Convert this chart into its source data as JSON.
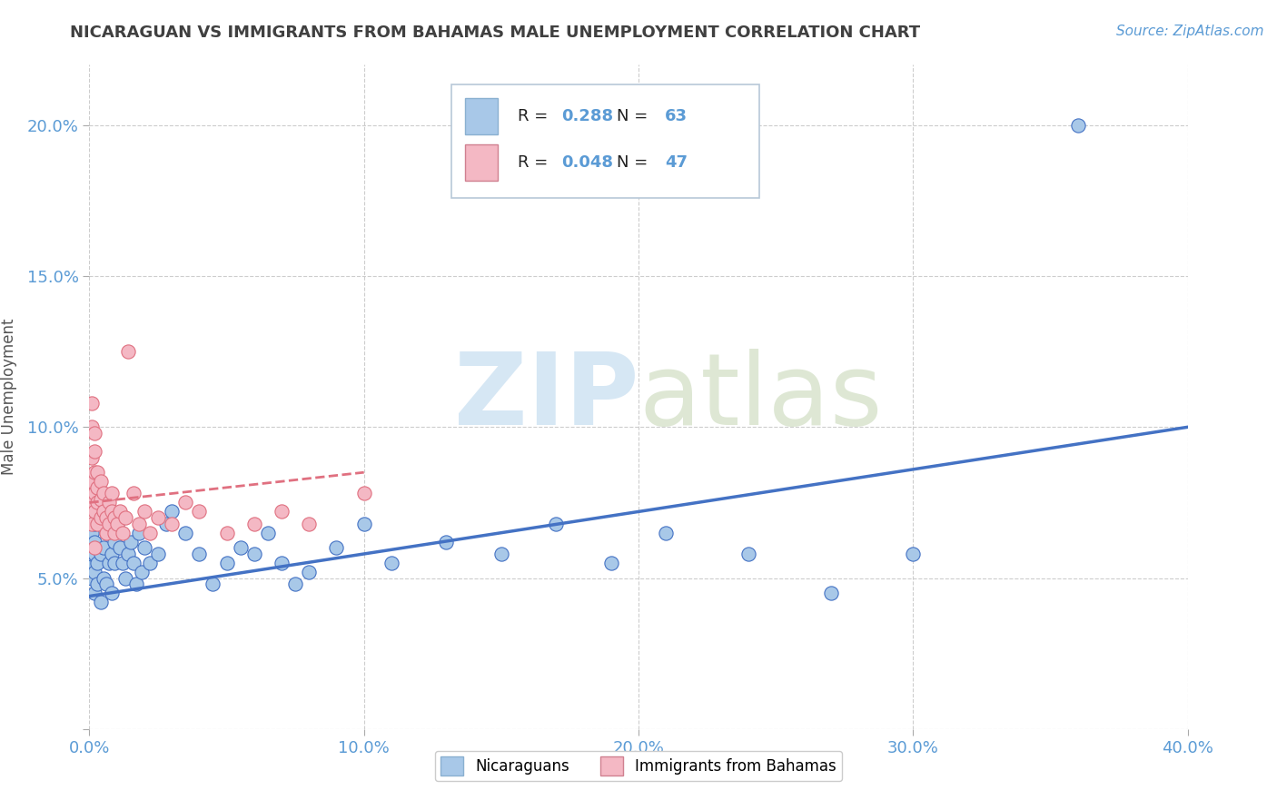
{
  "title": "NICARAGUAN VS IMMIGRANTS FROM BAHAMAS MALE UNEMPLOYMENT CORRELATION CHART",
  "source": "Source: ZipAtlas.com",
  "ylabel": "Male Unemployment",
  "xlim": [
    0.0,
    0.4
  ],
  "ylim": [
    0.0,
    0.22
  ],
  "xticks": [
    0.0,
    0.1,
    0.2,
    0.3,
    0.4
  ],
  "xticklabels": [
    "0.0%",
    "10.0%",
    "20.0%",
    "30.0%",
    "40.0%"
  ],
  "yticks": [
    0.0,
    0.05,
    0.1,
    0.15,
    0.2
  ],
  "yticklabels": [
    "",
    "5.0%",
    "10.0%",
    "15.0%",
    "20.0%"
  ],
  "series1_color": "#a8c8e8",
  "series2_color": "#f4b8c4",
  "line1_color": "#4472c4",
  "line2_color": "#e07080",
  "R1": 0.288,
  "N1": 63,
  "R2": 0.048,
  "N2": 47,
  "background_color": "#ffffff",
  "grid_color": "#c8c8c8",
  "tick_color": "#5b9bd5",
  "title_color": "#404040",
  "nicaraguans_x": [
    0.001,
    0.001,
    0.001,
    0.001,
    0.001,
    0.002,
    0.002,
    0.002,
    0.002,
    0.002,
    0.003,
    0.003,
    0.003,
    0.004,
    0.004,
    0.004,
    0.005,
    0.005,
    0.006,
    0.006,
    0.007,
    0.007,
    0.008,
    0.008,
    0.009,
    0.009,
    0.01,
    0.011,
    0.012,
    0.013,
    0.014,
    0.015,
    0.016,
    0.017,
    0.018,
    0.019,
    0.02,
    0.022,
    0.025,
    0.028,
    0.03,
    0.035,
    0.04,
    0.045,
    0.05,
    0.055,
    0.06,
    0.065,
    0.07,
    0.075,
    0.08,
    0.09,
    0.1,
    0.11,
    0.13,
    0.15,
    0.17,
    0.19,
    0.21,
    0.24,
    0.27,
    0.3,
    0.36
  ],
  "nicaraguans_y": [
    0.065,
    0.06,
    0.055,
    0.058,
    0.05,
    0.062,
    0.058,
    0.052,
    0.068,
    0.045,
    0.07,
    0.055,
    0.048,
    0.058,
    0.072,
    0.042,
    0.06,
    0.05,
    0.065,
    0.048,
    0.055,
    0.068,
    0.058,
    0.045,
    0.055,
    0.062,
    0.068,
    0.06,
    0.055,
    0.05,
    0.058,
    0.062,
    0.055,
    0.048,
    0.065,
    0.052,
    0.06,
    0.055,
    0.058,
    0.068,
    0.072,
    0.065,
    0.058,
    0.048,
    0.055,
    0.06,
    0.058,
    0.065,
    0.055,
    0.048,
    0.052,
    0.06,
    0.068,
    0.055,
    0.062,
    0.058,
    0.068,
    0.055,
    0.065,
    0.058,
    0.045,
    0.058,
    0.2
  ],
  "bahamas_x": [
    0.001,
    0.001,
    0.001,
    0.001,
    0.001,
    0.001,
    0.002,
    0.002,
    0.002,
    0.002,
    0.002,
    0.002,
    0.003,
    0.003,
    0.003,
    0.003,
    0.004,
    0.004,
    0.004,
    0.005,
    0.005,
    0.006,
    0.006,
    0.007,
    0.007,
    0.008,
    0.008,
    0.009,
    0.009,
    0.01,
    0.011,
    0.012,
    0.013,
    0.014,
    0.016,
    0.018,
    0.02,
    0.022,
    0.025,
    0.03,
    0.035,
    0.04,
    0.05,
    0.06,
    0.07,
    0.08,
    0.1
  ],
  "bahamas_y": [
    0.068,
    0.075,
    0.082,
    0.09,
    0.1,
    0.108,
    0.072,
    0.078,
    0.085,
    0.092,
    0.098,
    0.06,
    0.068,
    0.075,
    0.08,
    0.085,
    0.07,
    0.076,
    0.082,
    0.072,
    0.078,
    0.065,
    0.07,
    0.068,
    0.075,
    0.072,
    0.078,
    0.065,
    0.07,
    0.068,
    0.072,
    0.065,
    0.07,
    0.125,
    0.078,
    0.068,
    0.072,
    0.065,
    0.07,
    0.068,
    0.075,
    0.072,
    0.065,
    0.068,
    0.072,
    0.068,
    0.078
  ],
  "line1_x": [
    0.0,
    0.4
  ],
  "line1_y": [
    0.044,
    0.1
  ],
  "line2_x": [
    0.0,
    0.1
  ],
  "line2_y": [
    0.075,
    0.085
  ]
}
